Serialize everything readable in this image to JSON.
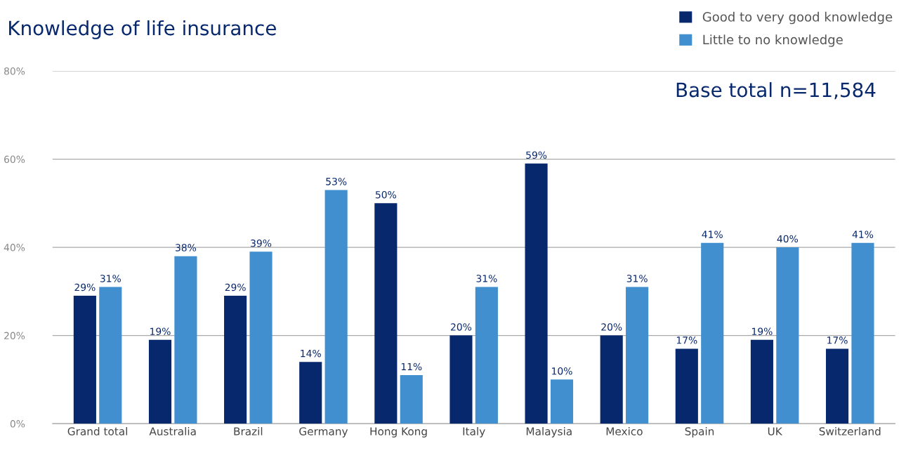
{
  "chart_data": {
    "type": "bar",
    "title": "Knowledge of life insurance",
    "categories": [
      "Grand total",
      "Australia",
      "Brazil",
      "Germany",
      "Hong Kong",
      "Italy",
      "Malaysia",
      "Mexico",
      "Spain",
      "UK",
      "Switzerland"
    ],
    "series": [
      {
        "name": "Good to very good knowledge",
        "color": "#08286e",
        "values": [
          29,
          19,
          29,
          14,
          50,
          20,
          59,
          20,
          17,
          19,
          17
        ],
        "value_labels": [
          "29%",
          "19%",
          "29%",
          "14%",
          "50%",
          "20%",
          "59%",
          "20%",
          "17%",
          "19%",
          "17%"
        ]
      },
      {
        "name": "Little to no knowledge",
        "color": "#418fcf",
        "values": [
          31,
          38,
          39,
          53,
          11,
          31,
          10,
          31,
          41,
          40,
          41
        ],
        "value_labels": [
          "31%",
          "38%",
          "39%",
          "53%",
          "11%",
          "31%",
          "10%",
          "31%",
          "41%",
          "40%",
          "41%"
        ]
      }
    ],
    "ylim": [
      0,
      80
    ],
    "yticks": [
      {
        "value": 0,
        "label": "0%"
      },
      {
        "value": 20,
        "label": "20%"
      },
      {
        "value": 40,
        "label": "40%"
      },
      {
        "value": 60,
        "label": "60%"
      },
      {
        "value": 80,
        "label": "80%"
      }
    ],
    "grid": "y",
    "legend": "top right",
    "annotations": [
      "Base total n=11,584"
    ]
  }
}
